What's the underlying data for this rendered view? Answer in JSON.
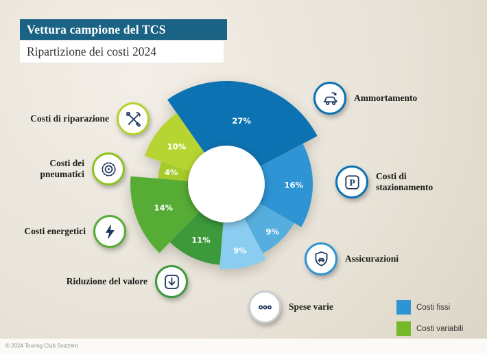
{
  "header": {
    "title": "Vettura campione del TCS",
    "subtitle": "Ripartizione dei costi 2024"
  },
  "footer": {
    "text": "© 2024 Touring Club Svizzero"
  },
  "legend": {
    "items": [
      {
        "label": "Costi fissi",
        "color": "#2e94d4"
      },
      {
        "label": "Costi variabili",
        "color": "#76b82a"
      }
    ]
  },
  "icon_glyphs": {
    "parking": "P"
  },
  "callouts": {
    "left": [
      {
        "text": "Costi di riparazione",
        "icon": "tools-icon",
        "ring": "#b3d22c"
      },
      {
        "text": "Costi dei pneumatici",
        "icon": "tire-icon",
        "ring": "#8cc21f"
      },
      {
        "text": "Costi energetici",
        "icon": "lightning-icon",
        "ring": "#57ab35"
      },
      {
        "text": "Riduzione del valore",
        "icon": "arrow-down-icon",
        "ring": "#3c9a3b"
      }
    ],
    "right": [
      {
        "text": "Ammortamento",
        "icon": "car-depreciation-icon",
        "ring": "#0d72b2"
      },
      {
        "text": "Costi di stazionamento",
        "icon": "parking-icon",
        "ring": "#0d72b2"
      },
      {
        "text": "Assicurazioni",
        "icon": "insurance-shield-icon",
        "ring": "#2e94d4"
      },
      {
        "text": "Spese varie",
        "icon": "ellipsis-icon",
        "ring": "#c9ced2"
      }
    ]
  },
  "chart_data": {
    "type": "pie",
    "style": "variable-radius donut",
    "title": "Ripartizione dei costi 2024",
    "unit": "%",
    "start_angle_deg": -125,
    "hole_radius": 56,
    "legend_position": "bottom-right",
    "slices": [
      {
        "label": "Ammortamento",
        "pct": 27,
        "color": "#0d72b2",
        "r": 150,
        "label_r": 0.63,
        "group": "Costi fissi"
      },
      {
        "label": "Costi di stazionamento",
        "pct": 16,
        "color": "#2e94d4",
        "r": 126,
        "label_r": 0.78,
        "group": "Costi fissi"
      },
      {
        "label": "Assicurazioni",
        "pct": 9,
        "color": "#56aede",
        "r": 114,
        "label_r": 0.85,
        "group": "Costi fissi"
      },
      {
        "label": "Spese varie",
        "pct": 9,
        "color": "#8bcdf0",
        "r": 124,
        "label_r": 0.8,
        "group": "Costi fissi"
      },
      {
        "label": "Riduzione del valore",
        "pct": 11,
        "color": "#3c9a3b",
        "r": 118,
        "label_r": 0.76,
        "group": "Costi variabili"
      },
      {
        "label": "Costi energetici",
        "pct": 14,
        "color": "#56ac35",
        "r": 140,
        "label_r": 0.7,
        "group": "Costi variabili"
      },
      {
        "label": "Costi dei pneumatici",
        "pct": 4,
        "color": "#a6cb2a",
        "r": 100,
        "label_r": 0.82,
        "group": "Costi variabili"
      },
      {
        "label": "Costi di riparazione",
        "pct": 10,
        "color": "#b7d532",
        "r": 126,
        "label_r": 0.72,
        "group": "Costi variabili"
      }
    ]
  }
}
